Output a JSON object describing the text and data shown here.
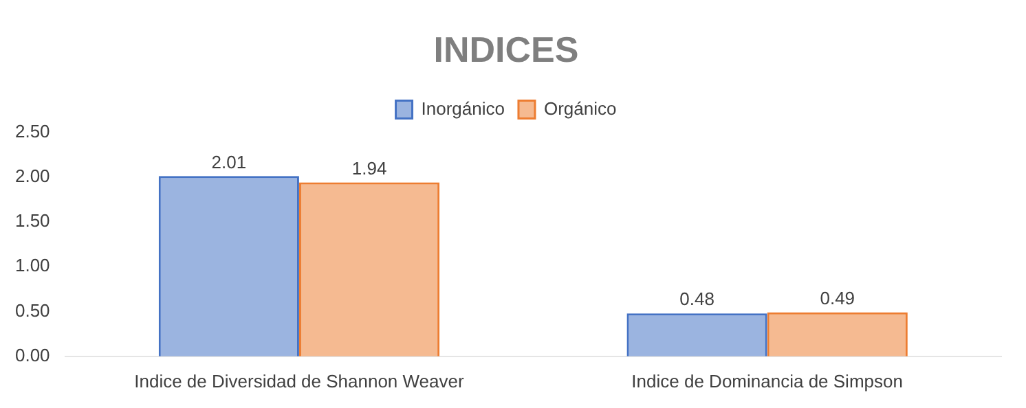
{
  "chart_data": {
    "type": "bar",
    "title": "INDICES",
    "categories": [
      "Indice de Diversidad de Shannon Weaver",
      "Indice de Dominancia de Simpson"
    ],
    "series": [
      {
        "name": "Inorgánico",
        "color": "#4472c4",
        "values": [
          2.01,
          0.48
        ],
        "value_labels": [
          "2.01",
          "0.48"
        ]
      },
      {
        "name": "Orgánico",
        "color": "#ed7d31",
        "values": [
          1.94,
          0.49
        ],
        "value_labels": [
          "1.94",
          "0.49"
        ]
      }
    ],
    "ylim": [
      0,
      2.5
    ],
    "yticks": [
      {
        "value": 0,
        "label": "0.00"
      },
      {
        "value": 0.5,
        "label": "0.50"
      },
      {
        "value": 1,
        "label": "1.00"
      },
      {
        "value": 1.5,
        "label": "1.50"
      },
      {
        "value": 2,
        "label": "2.00"
      },
      {
        "value": 2.5,
        "label": "2.50"
      }
    ],
    "grid": false,
    "legend": "top"
  }
}
